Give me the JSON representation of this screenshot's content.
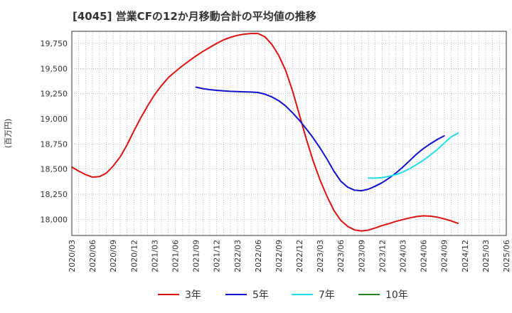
{
  "chart_data": {
    "type": "line",
    "title": "[4045]  営業CFの12か月移動合計の平均値の推移",
    "ylabel": "(百万円)",
    "xlabel": "",
    "ylim": [
      17840,
      19870
    ],
    "y_ticks": [
      18000,
      18250,
      18500,
      18750,
      19000,
      19250,
      19500,
      19750
    ],
    "y_tick_labels": [
      "18,000",
      "18,250",
      "18,500",
      "18,750",
      "19,000",
      "19,250",
      "19,500",
      "19,750"
    ],
    "x_ticks": [
      "2020/03",
      "2020/06",
      "2020/09",
      "2020/12",
      "2021/03",
      "2021/06",
      "2021/09",
      "2021/12",
      "2022/03",
      "2022/06",
      "2022/09",
      "2022/12",
      "2023/03",
      "2023/06",
      "2023/09",
      "2023/12",
      "2024/03",
      "2024/06",
      "2024/09",
      "2024/12",
      "2025/03",
      "2025/06"
    ],
    "grid": true,
    "legend_position": "bottom",
    "series": [
      {
        "name": "3年",
        "color": "#dd1111",
        "points": [
          [
            "2020/03",
            18520
          ],
          [
            "2020/04",
            18480
          ],
          [
            "2020/05",
            18445
          ],
          [
            "2020/06",
            18420
          ],
          [
            "2020/07",
            18425
          ],
          [
            "2020/08",
            18460
          ],
          [
            "2020/09",
            18530
          ],
          [
            "2020/10",
            18620
          ],
          [
            "2020/11",
            18740
          ],
          [
            "2020/12",
            18880
          ],
          [
            "2021/01",
            19010
          ],
          [
            "2021/02",
            19130
          ],
          [
            "2021/03",
            19240
          ],
          [
            "2021/04",
            19330
          ],
          [
            "2021/05",
            19410
          ],
          [
            "2021/06",
            19470
          ],
          [
            "2021/07",
            19525
          ],
          [
            "2021/08",
            19575
          ],
          [
            "2021/09",
            19625
          ],
          [
            "2021/10",
            19670
          ],
          [
            "2021/11",
            19710
          ],
          [
            "2021/12",
            19750
          ],
          [
            "2022/01",
            19785
          ],
          [
            "2022/02",
            19810
          ],
          [
            "2022/03",
            19830
          ],
          [
            "2022/04",
            19842
          ],
          [
            "2022/05",
            19848
          ],
          [
            "2022/06",
            19848
          ],
          [
            "2022/07",
            19815
          ],
          [
            "2022/08",
            19740
          ],
          [
            "2022/09",
            19630
          ],
          [
            "2022/10",
            19480
          ],
          [
            "2022/11",
            19280
          ],
          [
            "2022/12",
            19040
          ],
          [
            "2023/01",
            18800
          ],
          [
            "2023/02",
            18580
          ],
          [
            "2023/03",
            18390
          ],
          [
            "2023/04",
            18230
          ],
          [
            "2023/05",
            18090
          ],
          [
            "2023/06",
            17990
          ],
          [
            "2023/07",
            17930
          ],
          [
            "2023/08",
            17895
          ],
          [
            "2023/09",
            17885
          ],
          [
            "2023/10",
            17893
          ],
          [
            "2023/11",
            17915
          ],
          [
            "2023/12",
            17938
          ],
          [
            "2024/01",
            17958
          ],
          [
            "2024/02",
            17980
          ],
          [
            "2024/03",
            17998
          ],
          [
            "2024/04",
            18015
          ],
          [
            "2024/05",
            18028
          ],
          [
            "2024/06",
            18035
          ],
          [
            "2024/07",
            18032
          ],
          [
            "2024/08",
            18022
          ],
          [
            "2024/09",
            18005
          ],
          [
            "2024/10",
            17985
          ],
          [
            "2024/11",
            17960
          ]
        ]
      },
      {
        "name": "5年",
        "color": "#1111cc",
        "points": [
          [
            "2021/09",
            19315
          ],
          [
            "2021/10",
            19300
          ],
          [
            "2021/11",
            19290
          ],
          [
            "2021/12",
            19283
          ],
          [
            "2022/01",
            19278
          ],
          [
            "2022/02",
            19273
          ],
          [
            "2022/03",
            19270
          ],
          [
            "2022/04",
            19268
          ],
          [
            "2022/05",
            19266
          ],
          [
            "2022/06",
            19262
          ],
          [
            "2022/07",
            19245
          ],
          [
            "2022/08",
            19218
          ],
          [
            "2022/09",
            19180
          ],
          [
            "2022/10",
            19128
          ],
          [
            "2022/11",
            19060
          ],
          [
            "2022/12",
            18985
          ],
          [
            "2023/01",
            18900
          ],
          [
            "2023/02",
            18810
          ],
          [
            "2023/03",
            18710
          ],
          [
            "2023/04",
            18600
          ],
          [
            "2023/05",
            18480
          ],
          [
            "2023/06",
            18380
          ],
          [
            "2023/07",
            18320
          ],
          [
            "2023/08",
            18290
          ],
          [
            "2023/09",
            18285
          ],
          [
            "2023/10",
            18300
          ],
          [
            "2023/11",
            18330
          ],
          [
            "2023/12",
            18365
          ],
          [
            "2024/01",
            18410
          ],
          [
            "2024/02",
            18460
          ],
          [
            "2024/03",
            18520
          ],
          [
            "2024/04",
            18585
          ],
          [
            "2024/05",
            18650
          ],
          [
            "2024/06",
            18705
          ],
          [
            "2024/07",
            18752
          ],
          [
            "2024/08",
            18795
          ],
          [
            "2024/09",
            18830
          ]
        ]
      },
      {
        "name": "7年",
        "color": "#22ddee",
        "points": [
          [
            "2023/10",
            18410
          ],
          [
            "2023/11",
            18410
          ],
          [
            "2023/12",
            18415
          ],
          [
            "2024/01",
            18428
          ],
          [
            "2024/02",
            18445
          ],
          [
            "2024/03",
            18470
          ],
          [
            "2024/04",
            18505
          ],
          [
            "2024/05",
            18545
          ],
          [
            "2024/06",
            18590
          ],
          [
            "2024/07",
            18640
          ],
          [
            "2024/08",
            18695
          ],
          [
            "2024/09",
            18758
          ],
          [
            "2024/10",
            18820
          ],
          [
            "2024/11",
            18858
          ]
        ]
      },
      {
        "name": "10年",
        "color": "#228822",
        "points": []
      }
    ]
  }
}
